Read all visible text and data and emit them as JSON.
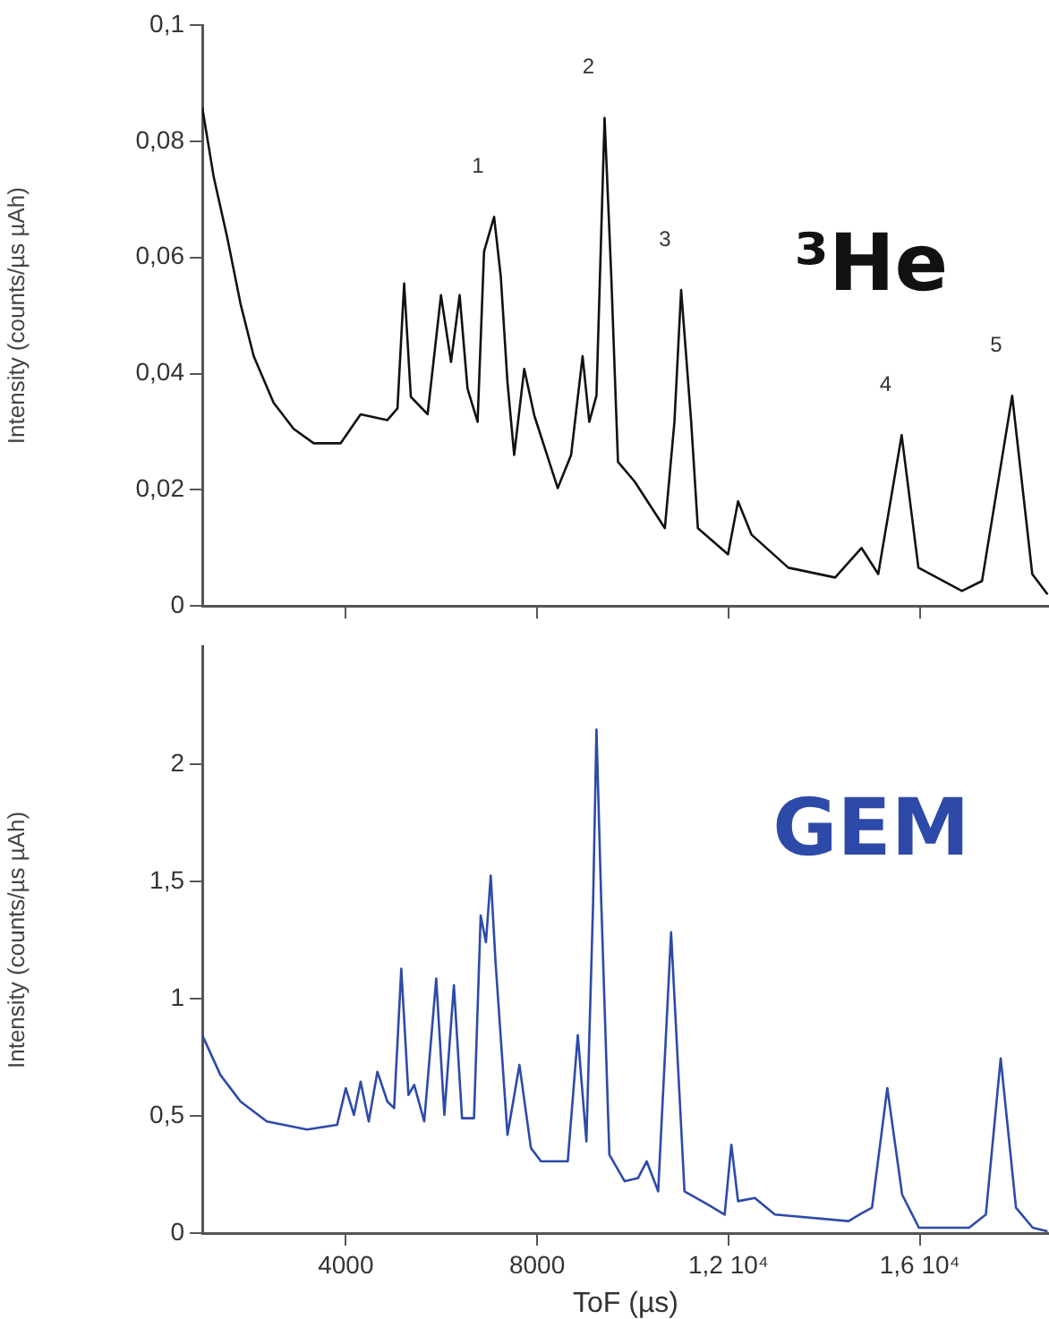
{
  "chart_data": [
    {
      "type": "line",
      "ylabel": "Intensity (counts/µs µAh)",
      "annotations": [
        "³He",
        {
          "text": "1",
          "x": 7100,
          "y": 0.067
        },
        {
          "text": "2",
          "x": 9410,
          "y": 0.084
        },
        {
          "text": "3",
          "x": 11010,
          "y": 0.0544
        },
        {
          "text": "4",
          "x": 15620,
          "y": 0.0294
        },
        {
          "text": "5",
          "x": 17930,
          "y": 0.0362
        }
      ],
      "xlim": [
        1000,
        18700
      ],
      "xticks": [
        {
          "value": 4000,
          "label": null
        },
        {
          "value": 8000,
          "label": null
        },
        {
          "value": 12000,
          "label": null
        },
        {
          "value": 16000,
          "label": null
        }
      ],
      "ylim": [
        0,
        0.1
      ],
      "yticks": [
        0,
        {
          "value": 0.02,
          "label": "0,02"
        },
        {
          "value": 0.04,
          "label": "0,04"
        },
        {
          "value": 0.06,
          "label": "0,06"
        },
        {
          "value": 0.08,
          "label": "0,08"
        },
        {
          "value": 0.1,
          "label": "0,1"
        }
      ],
      "tick_labels": "y",
      "grid": false,
      "legend": false,
      "marker": "none",
      "line_style": "solid",
      "series": [
        {
          "color": "#111111",
          "x": [
            1000,
            1240,
            1520,
            1800,
            2075,
            2490,
            2910,
            3330,
            3890,
            4310,
            4870,
            5080,
            5220,
            5360,
            5710,
            5990,
            6200,
            6380,
            6545,
            6755,
            6890,
            7100,
            7240,
            7380,
            7520,
            7730,
            7940,
            8430,
            8710,
            8950,
            9090,
            9240,
            9410,
            9550,
            9690,
            10040,
            10670,
            10870,
            11010,
            11220,
            11360,
            11990,
            12200,
            12480,
            13250,
            14230,
            14780,
            15130,
            15620,
            15970,
            16880,
            17300,
            17930,
            18350,
            18670
          ],
          "values": [
            0.0858,
            0.0738,
            0.0635,
            0.052,
            0.043,
            0.035,
            0.0305,
            0.028,
            0.028,
            0.033,
            0.032,
            0.034,
            0.0555,
            0.036,
            0.033,
            0.0535,
            0.042,
            0.0535,
            0.0374,
            0.0317,
            0.061,
            0.067,
            0.0567,
            0.0385,
            0.026,
            0.0408,
            0.0328,
            0.0203,
            0.026,
            0.043,
            0.0317,
            0.0362,
            0.084,
            0.0567,
            0.0248,
            0.0214,
            0.0134,
            0.0317,
            0.0544,
            0.0317,
            0.0134,
            0.0089,
            0.018,
            0.0123,
            0.0066,
            0.0049,
            0.01,
            0.0055,
            0.0294,
            0.0066,
            0.0026,
            0.0043,
            0.0362,
            0.0055,
            0.002
          ]
        }
      ]
    },
    {
      "type": "line",
      "xlabel": "ToF (µs)",
      "ylabel": "Intensity (counts/µs µAh)",
      "annotations": [
        "GEM"
      ],
      "xlim": [
        1000,
        18700
      ],
      "xticks": [
        4000,
        8000,
        {
          "value": 12000,
          "label": "1,2 10⁴"
        },
        {
          "value": 16000,
          "label": "1,6 10⁴"
        }
      ],
      "ylim": [
        0,
        2.5
      ],
      "yticks": [
        0,
        {
          "value": 0.5,
          "label": "0,5"
        },
        1,
        {
          "value": 1.5,
          "label": "1,5"
        },
        2
      ],
      "grid": false,
      "legend": false,
      "marker": "none",
      "line_style": "solid",
      "series": [
        {
          "color": "#2e4aa8",
          "x": [
            1000,
            1380,
            1800,
            2350,
            3190,
            3820,
            4000,
            4170,
            4310,
            4480,
            4660,
            4870,
            5010,
            5160,
            5310,
            5430,
            5640,
            5890,
            6060,
            6260,
            6430,
            6680,
            6820,
            6930,
            7030,
            7130,
            7380,
            7630,
            7870,
            8080,
            8640,
            8850,
            9030,
            9170,
            9240,
            9340,
            9510,
            9830,
            10110,
            10290,
            10530,
            10800,
            11080,
            11570,
            11920,
            12060,
            12200,
            12550,
            12970,
            14510,
            14790,
            15000,
            15320,
            15630,
            15980,
            17030,
            17380,
            17690,
            18010,
            18360,
            18670
          ],
          "values": [
            0.844,
            0.674,
            0.561,
            0.476,
            0.442,
            0.462,
            0.618,
            0.504,
            0.646,
            0.476,
            0.688,
            0.561,
            0.533,
            1.127,
            0.589,
            0.632,
            0.476,
            1.085,
            0.504,
            1.057,
            0.49,
            0.49,
            1.354,
            1.24,
            1.524,
            1.156,
            0.419,
            0.717,
            0.363,
            0.306,
            0.306,
            0.844,
            0.391,
            1.411,
            2.147,
            1.411,
            0.334,
            0.221,
            0.235,
            0.306,
            0.178,
            1.283,
            0.178,
            0.122,
            0.079,
            0.377,
            0.136,
            0.15,
            0.079,
            0.051,
            0.085,
            0.108,
            0.618,
            0.164,
            0.023,
            0.023,
            0.079,
            0.745,
            0.108,
            0.023,
            0.008
          ]
        }
      ]
    }
  ]
}
